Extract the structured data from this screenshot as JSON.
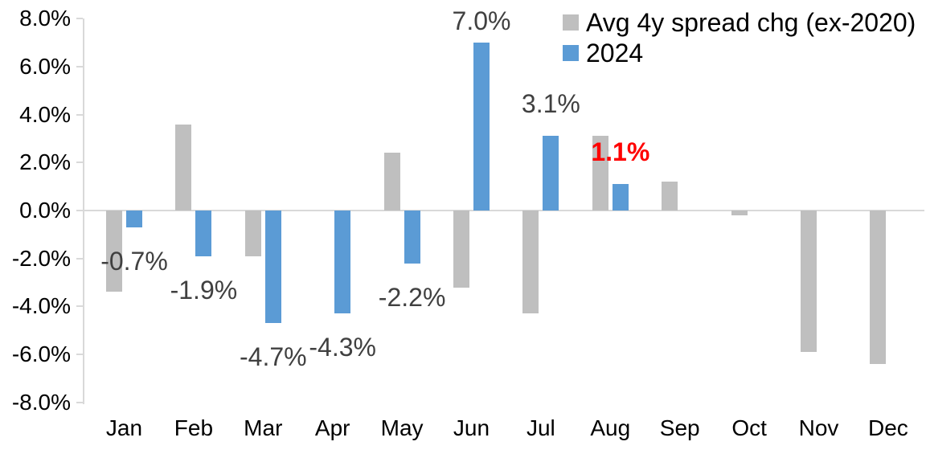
{
  "colors": {
    "series_avg": "#BFBFBF",
    "series_2024": "#5B9BD5",
    "axis_line": "#D9D9D9",
    "data_label": "#404040",
    "highlight_label": "#FF0000",
    "axis_text": "#000000"
  },
  "chart_data": {
    "type": "bar",
    "title": "",
    "categories": [
      "Jan",
      "Feb",
      "Mar",
      "Apr",
      "May",
      "Jun",
      "Jul",
      "Aug",
      "Sep",
      "Oct",
      "Nov",
      "Dec"
    ],
    "y_axis": {
      "min": -8,
      "max": 8,
      "tick_step": 2,
      "tick_labels": [
        "8.0%",
        "6.0%",
        "4.0%",
        "2.0%",
        "0.0%",
        "-2.0%",
        "-4.0%",
        "-6.0%",
        "-8.0%"
      ],
      "format": "percent"
    },
    "grid": false,
    "legend_position": "top-right",
    "series": [
      {
        "name": "Avg 4y spread chg (ex-2020)",
        "color": "#BFBFBF",
        "values": [
          -3.4,
          3.6,
          -1.9,
          0.0,
          2.4,
          -3.2,
          -4.3,
          3.1,
          1.2,
          -0.2,
          -5.9,
          -6.4
        ]
      },
      {
        "name": "2024",
        "color": "#5B9BD5",
        "values": [
          -0.7,
          -1.9,
          -4.7,
          -4.3,
          -2.2,
          7.0,
          3.1,
          1.1,
          null,
          null,
          null,
          null
        ],
        "data_labels": [
          {
            "text": "-0.7%"
          },
          {
            "text": "-1.9%"
          },
          {
            "text": "-4.7%"
          },
          {
            "text": "-4.3%"
          },
          {
            "text": "-2.2%"
          },
          {
            "text": "7.0%"
          },
          {
            "text": "3.1%"
          },
          {
            "text": "1.1%",
            "color": "#FF0000",
            "bold": true
          },
          null,
          null,
          null,
          null
        ]
      }
    ]
  }
}
